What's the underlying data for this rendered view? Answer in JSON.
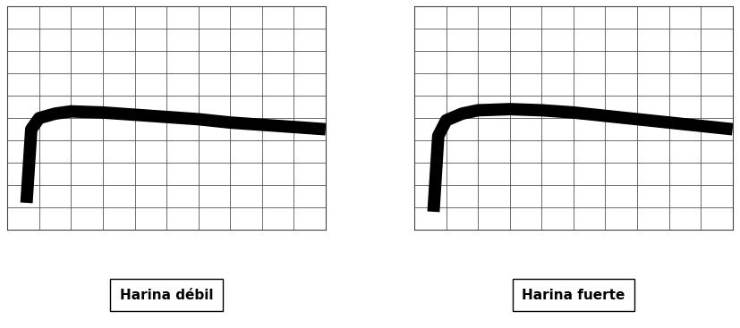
{
  "chart_data": [
    {
      "type": "line",
      "title": "Harina débil",
      "x": [
        1.2,
        1.5,
        2,
        3,
        4,
        6,
        8,
        10,
        12,
        14,
        16,
        18,
        20
      ],
      "values": [
        120,
        450,
        500,
        520,
        530,
        525,
        515,
        505,
        495,
        480,
        470,
        460,
        450
      ],
      "color": "#000000",
      "xlim": [
        0,
        20
      ],
      "xticks": [
        0,
        2,
        4,
        6,
        8,
        10,
        12,
        14,
        16,
        18,
        20
      ],
      "ylim": [
        0,
        1000
      ],
      "yticks": [
        0,
        100,
        200,
        300,
        400,
        500,
        600,
        700,
        800,
        900,
        1000
      ],
      "grid": true,
      "tick_labels": false
    },
    {
      "type": "line",
      "title": "Harina fuerte",
      "x": [
        1.2,
        1.5,
        2,
        3,
        4,
        6,
        8,
        10,
        12,
        14,
        16,
        18,
        20
      ],
      "values": [
        80,
        420,
        490,
        520,
        535,
        540,
        535,
        525,
        510,
        495,
        480,
        465,
        450
      ],
      "color": "#000000",
      "xlim": [
        0,
        20
      ],
      "xticks": [
        0,
        2,
        4,
        6,
        8,
        10,
        12,
        14,
        16,
        18,
        20
      ],
      "ylim": [
        0,
        1000
      ],
      "yticks": [
        0,
        100,
        200,
        300,
        400,
        500,
        600,
        700,
        800,
        900,
        1000
      ],
      "grid": true,
      "tick_labels": false
    }
  ]
}
